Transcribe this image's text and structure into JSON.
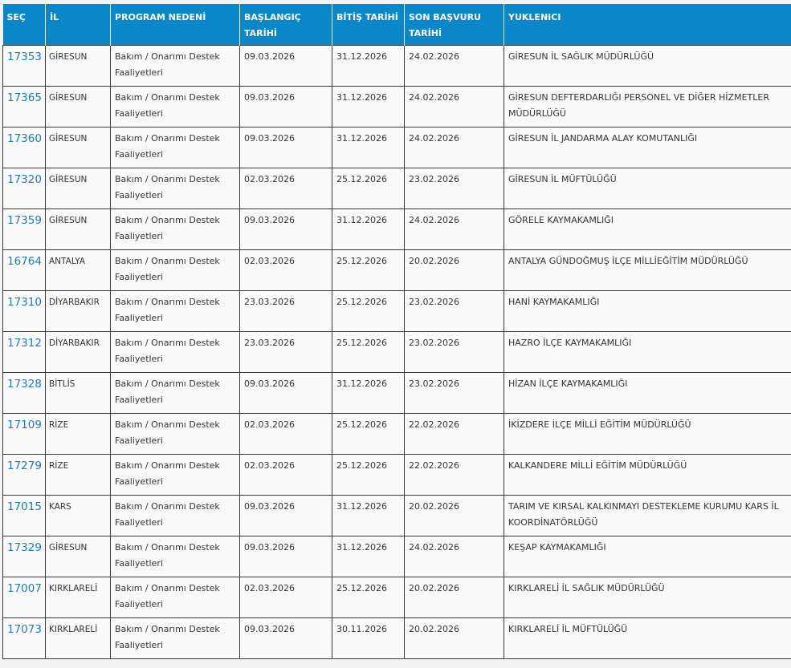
{
  "colors": {
    "header_bg": "#0a87c9",
    "link": "#1f7bb5"
  },
  "headers": [
    "SEÇ",
    "İL",
    "PROGRAM NEDENİ",
    "BAŞLANGIÇ TARİHİ",
    "BİTİŞ TARİHİ",
    "SON BAŞVURU TARİHİ",
    "YUKLENICI"
  ],
  "rows": [
    {
      "id": "17353",
      "il": "GİRESUN",
      "neden": "Bakım / Onarımı Destek Faaliyetleri",
      "baslangic": "09.03.2026",
      "bitis": "31.12.2026",
      "son": "24.02.2026",
      "yuklenici": "GİRESUN İL SAĞLIK MÜDÜRLÜĞÜ"
    },
    {
      "id": "17365",
      "il": "GİRESUN",
      "neden": "Bakım / Onarımı Destek Faaliyetleri",
      "baslangic": "09.03.2026",
      "bitis": "31.12.2026",
      "son": "24.02.2026",
      "yuklenici": "GİRESUN DEFTERDARLIĞI PERSONEL VE DİĞER HİZMETLER MÜDÜRLÜĞÜ"
    },
    {
      "id": "17360",
      "il": "GİRESUN",
      "neden": "Bakım / Onarımı Destek Faaliyetleri",
      "baslangic": "09.03.2026",
      "bitis": "31.12.2026",
      "son": "24.02.2026",
      "yuklenici": "GİRESUN İL JANDARMA ALAY KOMUTANLIĞI"
    },
    {
      "id": "17320",
      "il": "GİRESUN",
      "neden": "Bakım / Onarımı Destek Faaliyetleri",
      "baslangic": "02.03.2026",
      "bitis": "25.12.2026",
      "son": "23.02.2026",
      "yuklenici": "GİRESUN İL MÜFTÜLÜĞÜ"
    },
    {
      "id": "17359",
      "il": "GİRESUN",
      "neden": "Bakım / Onarımı Destek Faaliyetleri",
      "baslangic": "09.03.2026",
      "bitis": "31.12.2026",
      "son": "24.02.2026",
      "yuklenici": "GÖRELE KAYMAKAMLIĞI"
    },
    {
      "id": "16764",
      "il": "ANTALYA",
      "neden": "Bakım / Onarımı Destek Faaliyetleri",
      "baslangic": "02.03.2026",
      "bitis": "25.12.2026",
      "son": "20.02.2026",
      "yuklenici": "ANTALYA GÜNDOĞMUŞ İLÇE MİLLİEĞİTİM MÜDÜRLÜĞÜ"
    },
    {
      "id": "17310",
      "il": "DİYARBAKIR",
      "neden": "Bakım / Onarımı Destek Faaliyetleri",
      "baslangic": "23.03.2026",
      "bitis": "25.12.2026",
      "son": "23.02.2026",
      "yuklenici": "HANİ KAYMAKAMLIĞI"
    },
    {
      "id": "17312",
      "il": "DİYARBAKIR",
      "neden": "Bakım / Onarımı Destek Faaliyetleri",
      "baslangic": "23.03.2026",
      "bitis": "25.12.2026",
      "son": "23.02.2026",
      "yuklenici": "HAZRO İLÇE KAYMAKAMLIĞI"
    },
    {
      "id": "17328",
      "il": "BİTLİS",
      "neden": "Bakım / Onarımı Destek Faaliyetleri",
      "baslangic": "09.03.2026",
      "bitis": "31.12.2026",
      "son": "23.02.2026",
      "yuklenici": "HİZAN İLÇE KAYMAKAMLIĞI"
    },
    {
      "id": "17109",
      "il": "RİZE",
      "neden": "Bakım / Onarımı Destek Faaliyetleri",
      "baslangic": "02.03.2026",
      "bitis": "25.12.2026",
      "son": "22.02.2026",
      "yuklenici": "İKİZDERE İLÇE MİLLİ EĞİTİM MÜDÜRLÜĞÜ"
    },
    {
      "id": "17279",
      "il": "RİZE",
      "neden": "Bakım / Onarımı Destek Faaliyetleri",
      "baslangic": "02.03.2026",
      "bitis": "25.12.2026",
      "son": "22.02.2026",
      "yuklenici": "KALKANDERE MİLLİ EĞİTİM MÜDÜRLÜĞÜ"
    },
    {
      "id": "17015",
      "il": "KARS",
      "neden": "Bakım / Onarımı Destek Faaliyetleri",
      "baslangic": "09.03.2026",
      "bitis": "31.12.2026",
      "son": "20.02.2026",
      "yuklenici": "TARIM VE KIRSAL KALKINMAYI DESTEKLEME KURUMU KARS İL KOORDİNATÖRLÜĞÜ"
    },
    {
      "id": "17329",
      "il": "GİRESUN",
      "neden": "Bakım / Onarımı Destek Faaliyetleri",
      "baslangic": "09.03.2026",
      "bitis": "31.12.2026",
      "son": "24.02.2026",
      "yuklenici": "KEŞAP KAYMAKAMLIĞI"
    },
    {
      "id": "17007",
      "il": "KIRKLARELİ",
      "neden": "Bakım / Onarımı Destek Faaliyetleri",
      "baslangic": "02.03.2026",
      "bitis": "25.12.2026",
      "son": "20.02.2026",
      "yuklenici": "KIRKLARELİ İL SAĞLIK MÜDÜRLÜĞÜ"
    },
    {
      "id": "17073",
      "il": "KIRKLARELİ",
      "neden": "Bakım / Onarımı Destek Faaliyetleri",
      "baslangic": "09.03.2026",
      "bitis": "30.11.2026",
      "son": "20.02.2026",
      "yuklenici": "KIRKLARELİ İL MÜFTÜLÜĞÜ"
    }
  ]
}
